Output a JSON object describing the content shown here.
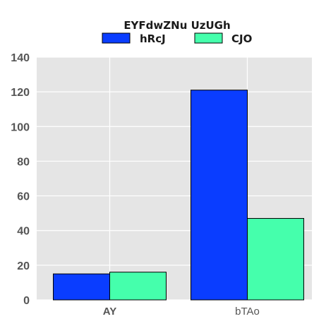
{
  "chart_data": {
    "type": "bar",
    "title": "EYFdwZNu UzUGh",
    "xlabel": "",
    "ylabel": "",
    "categories": [
      "AY",
      "bTAo"
    ],
    "series": [
      {
        "name": "hRcJ",
        "values": [
          15,
          121
        ],
        "color": "#0a3dff"
      },
      {
        "name": "CJO",
        "values": [
          16,
          47
        ],
        "color": "#45ffac"
      }
    ],
    "ylim": [
      0,
      140
    ],
    "yticks": [
      0,
      20,
      40,
      60,
      80,
      100,
      120,
      140
    ],
    "grid": true,
    "legend_position": "top-center",
    "background_color": "#e5e5e5"
  }
}
